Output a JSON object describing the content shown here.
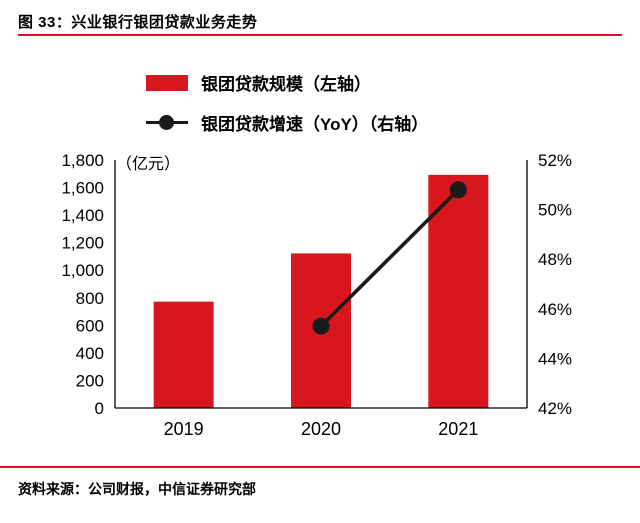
{
  "header": {
    "title": "图 33：兴业银行银团贷款业务走势"
  },
  "legend": [
    {
      "type": "bar",
      "label": "银团贷款规模（左轴）"
    },
    {
      "type": "line",
      "label": "银团贷款增速（YoY）（右轴）"
    }
  ],
  "footer": {
    "source": "资料来源：公司财报，中信证券研究部"
  },
  "colors": {
    "accent_red": "#D7161E",
    "line_black": "#1A1A1A",
    "axis_black": "#000000"
  },
  "chart_data": {
    "type": "bar",
    "subtype": "bar+line dual-axis",
    "categories": [
      "2019",
      "2020",
      "2021"
    ],
    "series": [
      {
        "name": "银团贷款规模（左轴）",
        "type": "bar",
        "axis": "left",
        "values": [
          772,
          1122,
          1692
        ]
      },
      {
        "name": "银团贷款增速（YoY）（右轴）",
        "type": "line",
        "axis": "right",
        "values": [
          null,
          45.3,
          50.8
        ]
      }
    ],
    "title": "兴业银行银团贷款业务走势",
    "xlabel": "",
    "ylabel": "（亿元）",
    "left_axis": {
      "unit_label": "（亿元）",
      "min": 0,
      "max": 1800,
      "step": 200,
      "tick_labels": [
        "1,800",
        "1,600",
        "1,400",
        "1,200",
        "1,000",
        "800",
        "600",
        "400",
        "200",
        "0"
      ]
    },
    "right_axis": {
      "min": 42,
      "max": 52,
      "step": 2,
      "tick_labels": [
        "52%",
        "50%",
        "48%",
        "46%",
        "44%",
        "42%"
      ]
    },
    "grid": false,
    "legend_position": "top"
  }
}
